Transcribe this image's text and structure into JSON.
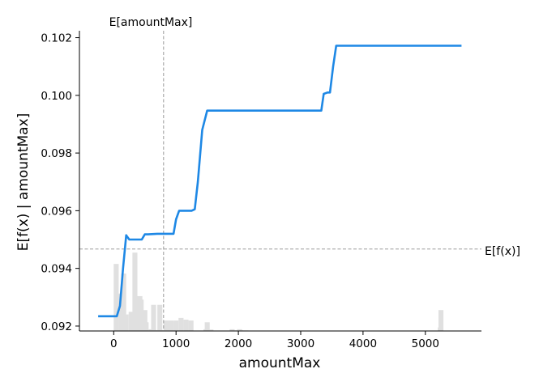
{
  "chart_data": {
    "type": "line",
    "xlabel": "amountMax",
    "ylabel": "E[f(x) | amountMax]",
    "xlim": [
      -550,
      5900
    ],
    "ylim": [
      0.09183,
      0.10224
    ],
    "x_ticks": [
      0,
      1000,
      2000,
      3000,
      4000,
      5000
    ],
    "x_tick_labels": [
      "0",
      "1000",
      "2000",
      "3000",
      "4000",
      "5000"
    ],
    "y_ticks": [
      0.092,
      0.094,
      0.096,
      0.098,
      0.1,
      0.102
    ],
    "y_tick_labels": [
      "0.092",
      "0.094",
      "0.096",
      "0.098",
      "0.100",
      "0.102"
    ],
    "grid": false,
    "colors": {
      "line": "#1e88e5",
      "hist": "#e0e0e0",
      "reference": "#999999"
    },
    "series": [
      {
        "x": [
          -250,
          50,
          100,
          150,
          200,
          250,
          300,
          450,
          500,
          550,
          700,
          800,
          900,
          960,
          1000,
          1050,
          1100,
          1250,
          1300,
          1350,
          1420,
          1500,
          1600,
          3300,
          3330,
          3370,
          3430,
          3470,
          3520,
          3570,
          5580
        ],
        "y": [
          0.09234,
          0.09234,
          0.0927,
          0.094,
          0.09515,
          0.095,
          0.095,
          0.095,
          0.09518,
          0.09518,
          0.0952,
          0.0952,
          0.0952,
          0.0952,
          0.0957,
          0.096,
          0.096,
          0.096,
          0.09605,
          0.097,
          0.0988,
          0.09947,
          0.09947,
          0.09947,
          0.09947,
          0.10005,
          0.1001,
          0.1001,
          0.101,
          0.10172,
          0.10172
        ]
      }
    ],
    "histogram": {
      "bin_edges": [
        0,
        80,
        160,
        240,
        320,
        400,
        480,
        560,
        640,
        720,
        800,
        880,
        960,
        1040,
        1120,
        1200,
        1280,
        1360,
        1440,
        1520,
        1600,
        1680,
        1760,
        1840,
        1920,
        2000,
        2080,
        2160,
        2240,
        5200,
        5280
      ],
      "heights": [
        0.385,
        0.215,
        0.095,
        0.11,
        0.035,
        0.18,
        0.05,
        0.01,
        0.005,
        0.005,
        0.003,
        0.003,
        0.06,
        0.075,
        0.065,
        0.06,
        0.0,
        0.0,
        0.01,
        0.008,
        0.0,
        0.0,
        0.0,
        0.002,
        0.003,
        0.004,
        0.003,
        0.002,
        0.0,
        0.02
      ],
      "extra_bins": [
        {
          "x0": 120,
          "x1": 200,
          "h": 0.33
        },
        {
          "x0": 300,
          "x1": 380,
          "h": 0.45
        },
        {
          "x0": 380,
          "x1": 460,
          "h": 0.2
        },
        {
          "x0": 460,
          "x1": 540,
          "h": 0.12
        },
        {
          "x0": 600,
          "x1": 680,
          "h": 0.15
        },
        {
          "x0": 700,
          "x1": 780,
          "h": 0.15
        },
        {
          "x0": 800,
          "x1": 880,
          "h": 0.06
        },
        {
          "x0": 880,
          "x1": 960,
          "h": 0.06
        },
        {
          "x0": 1460,
          "x1": 1540,
          "h": 0.05
        },
        {
          "x0": 1860,
          "x1": 1940,
          "h": 0.01
        },
        {
          "x0": 1980,
          "x1": 2060,
          "h": 0.01
        },
        {
          "x0": 5210,
          "x1": 5290,
          "h": 0.12
        }
      ]
    },
    "annotations": {
      "expected_x": {
        "value": 800,
        "label": "E[amountMax]"
      },
      "expected_fx": {
        "value": 0.09467,
        "label": "E[f(x)]"
      }
    }
  }
}
